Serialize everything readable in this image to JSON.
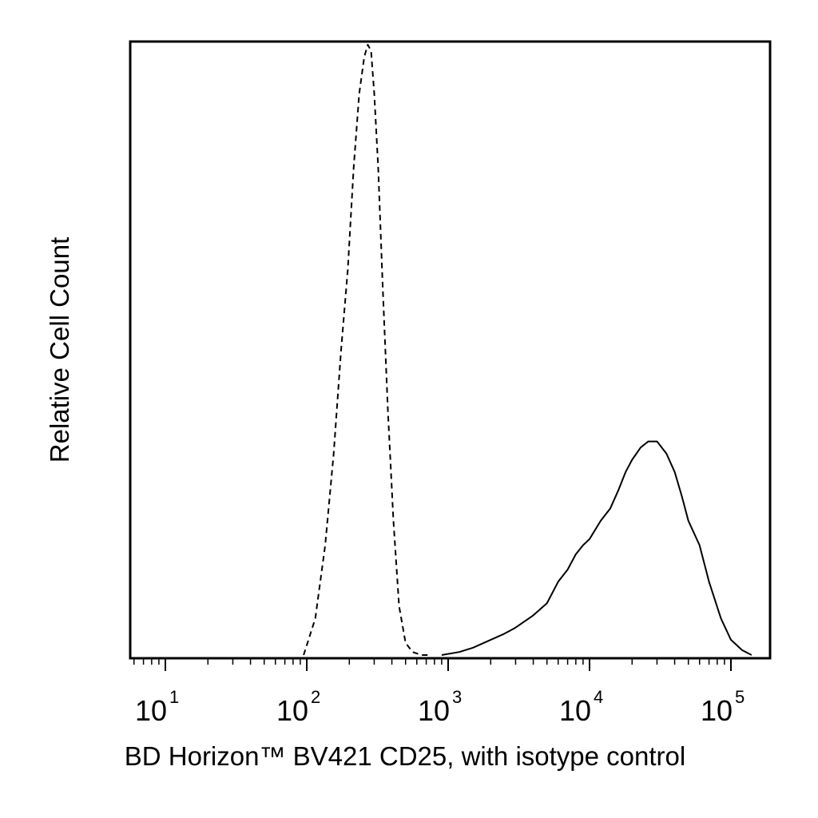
{
  "chart_data": {
    "type": "line",
    "title": "",
    "xlabel": "BD Horizon™ BV421 CD25, with isotype control",
    "ylabel": "Relative Cell Count",
    "xscale": "log",
    "xlim": [
      5,
      250000
    ],
    "ylim": [
      0,
      1.0
    ],
    "xticks": [
      {
        "base": "10",
        "exp": "1",
        "value": 10
      },
      {
        "base": "10",
        "exp": "2",
        "value": 100
      },
      {
        "base": "10",
        "exp": "3",
        "value": 1000
      },
      {
        "base": "10",
        "exp": "4",
        "value": 10000
      },
      {
        "base": "10",
        "exp": "5",
        "value": 100000
      }
    ],
    "grid": false,
    "legend": "none",
    "series": [
      {
        "style": "dashed",
        "color": "#000000",
        "x": [
          95,
          115,
          135,
          155,
          175,
          195,
          215,
          235,
          255,
          270,
          285,
          300,
          320,
          345,
          375,
          410,
          450,
          500,
          560,
          650,
          720
        ],
        "y": [
          0.0,
          0.06,
          0.18,
          0.33,
          0.5,
          0.63,
          0.8,
          0.92,
          0.98,
          1.0,
          0.99,
          0.92,
          0.8,
          0.6,
          0.4,
          0.22,
          0.08,
          0.02,
          0.005,
          0.0,
          0.0
        ]
      },
      {
        "style": "solid",
        "color": "#000000",
        "x": [
          900,
          1200,
          1500,
          2000,
          2500,
          3000,
          4000,
          5000,
          6000,
          7000,
          8000,
          9000,
          10000,
          12000,
          14000,
          16000,
          18000,
          20000,
          23000,
          26000,
          30000,
          35000,
          40000,
          45000,
          50000,
          60000,
          70000,
          85000,
          100000,
          120000,
          140000
        ],
        "y": [
          0.0,
          0.005,
          0.012,
          0.025,
          0.035,
          0.045,
          0.065,
          0.085,
          0.12,
          0.14,
          0.165,
          0.18,
          0.19,
          0.22,
          0.24,
          0.27,
          0.3,
          0.32,
          0.34,
          0.35,
          0.35,
          0.33,
          0.3,
          0.26,
          0.22,
          0.18,
          0.12,
          0.06,
          0.025,
          0.008,
          0.0
        ]
      }
    ]
  }
}
